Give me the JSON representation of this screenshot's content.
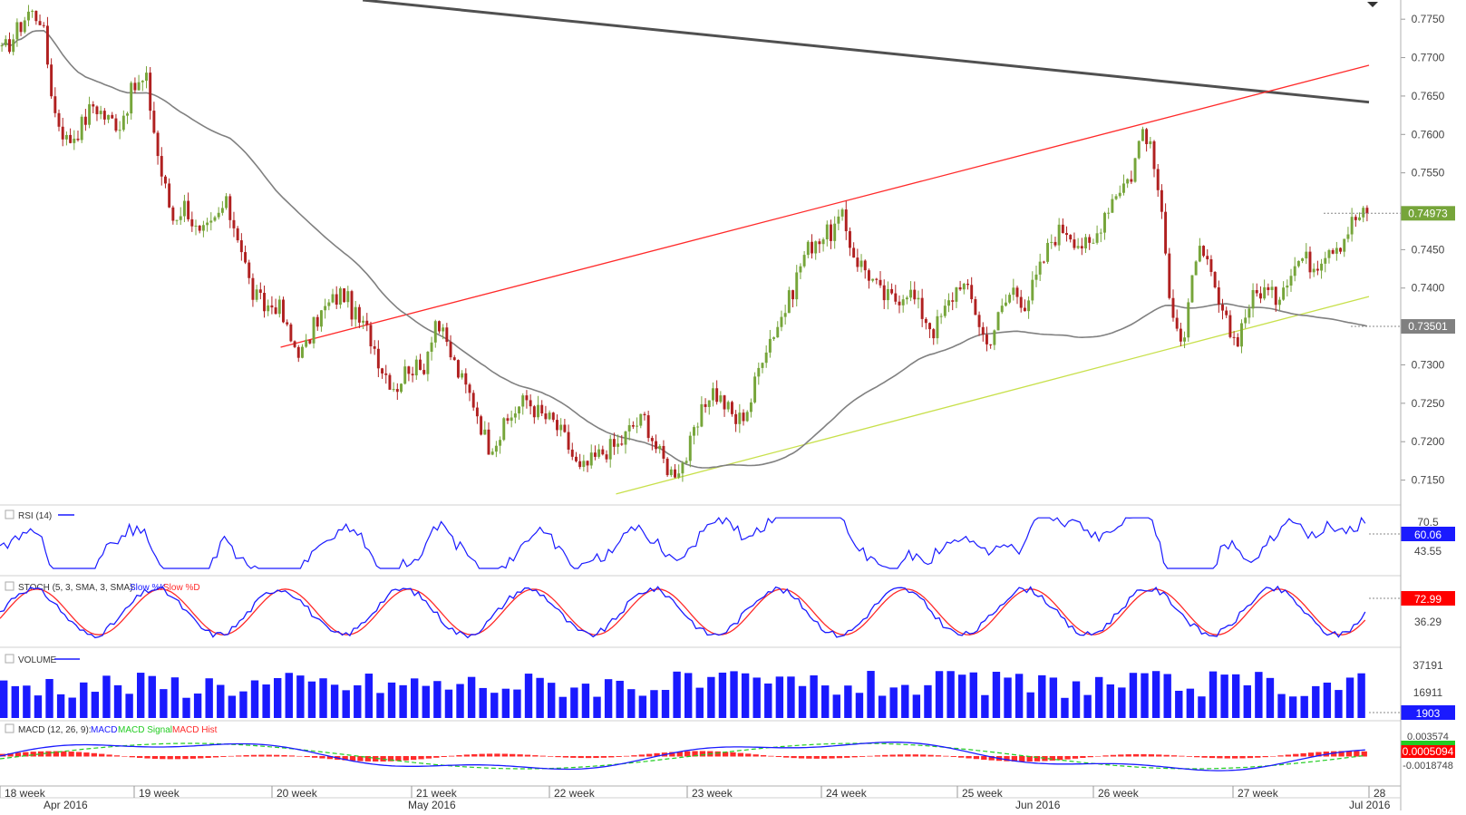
{
  "chart_data": [
    {
      "panel": "price",
      "type": "candlestick",
      "y_range": [
        0.712,
        0.7775
      ],
      "y_ticks": [
        "0.7750",
        "0.7700",
        "0.7650",
        "0.7600",
        "0.7550",
        "0.7500",
        "0.7450",
        "0.7400",
        "0.7350",
        "0.7300",
        "0.7250",
        "0.7200",
        "0.7150"
      ],
      "last_price": {
        "text": "0.74973",
        "value": 0.74973,
        "color": "#76a53a"
      },
      "ma_label": {
        "text": "0.73501",
        "value": 0.73501,
        "color": "#808080"
      },
      "series_seed": [
        0.7705,
        0.773,
        0.776,
        0.7752,
        0.763,
        0.759,
        0.761,
        0.764,
        0.762,
        0.7615,
        0.766,
        0.767,
        0.756,
        0.749,
        0.751,
        0.7465,
        0.748,
        0.751,
        0.747,
        0.7395,
        0.7375,
        0.738,
        0.733,
        0.7315,
        0.736,
        0.738,
        0.7395,
        0.736,
        0.734,
        0.7295,
        0.727,
        0.73,
        0.729,
        0.736,
        0.732,
        0.728,
        0.725,
        0.7195,
        0.721,
        0.724,
        0.7255,
        0.7235,
        0.7225,
        0.72,
        0.716,
        0.7175,
        0.719,
        0.7195,
        0.722,
        0.723,
        0.7185,
        0.716,
        0.7175,
        0.722,
        0.727,
        0.725,
        0.7225,
        0.725,
        0.732,
        0.735,
        0.7385,
        0.744,
        0.7465,
        0.747,
        0.749,
        0.744,
        0.742,
        0.739,
        0.7385,
        0.74,
        0.737,
        0.7345,
        0.7375,
        0.741,
        0.738,
        0.7325,
        0.7365,
        0.74,
        0.738,
        0.742,
        0.7465,
        0.748,
        0.746,
        0.745,
        0.75,
        0.753,
        0.7545,
        0.7615,
        0.754,
        0.739,
        0.732,
        0.745,
        0.742,
        0.736,
        0.733,
        0.738,
        0.74,
        0.7385,
        0.742,
        0.744,
        0.743,
        0.7455,
        0.746,
        0.749,
        0.7497
      ],
      "trendlines": [
        {
          "name": "upper-dark-trendline",
          "color": "#505050",
          "from": [
            0.265,
            0.7775
          ],
          "to": [
            1.0,
            0.7642
          ]
        },
        {
          "name": "red-trendline",
          "color": "#ff2a2a",
          "from": [
            0.205,
            0.7323
          ],
          "to": [
            1.0,
            0.769
          ]
        },
        {
          "name": "yellow-trendline",
          "color": "#c8e04b",
          "from": [
            0.45,
            0.7132
          ],
          "to": [
            1.0,
            0.7389
          ]
        }
      ]
    },
    {
      "panel": "rsi",
      "type": "line",
      "label": "RSI (14)",
      "color": "#1a1aff",
      "y_ticks": [
        "70.5",
        "43.55"
      ],
      "last_value": {
        "text": "60.06",
        "color": "#1a1aff"
      }
    },
    {
      "panel": "stoch",
      "type": "line",
      "label_prefix": "STOCH (5, 3, SMA, 3, SMA):",
      "series": [
        {
          "name": "Slow %K",
          "color": "#1a1aff"
        },
        {
          "name": "Slow %D",
          "color": "#ff2a2a"
        }
      ],
      "y_ticks": [
        "36.29"
      ],
      "last_value": {
        "text": "72.99",
        "color": "#ff2a2a"
      }
    },
    {
      "panel": "volume",
      "type": "bar",
      "label": "VOLUME",
      "color": "#1a1aff",
      "y_ticks": [
        "37191",
        "16911"
      ],
      "last_value": {
        "text": "1903",
        "color": "#1a1aff"
      }
    },
    {
      "panel": "macd",
      "type": "line",
      "label_prefix": "MACD (12, 26, 9):",
      "series": [
        {
          "name": "MACD",
          "color": "#1a1aff"
        },
        {
          "name": "MACD Signal",
          "color": "#22cc22"
        },
        {
          "name": "MACD Hist",
          "color": "#ff2a2a"
        }
      ],
      "y_ticks": [
        "0.003574",
        "-0.0018748"
      ],
      "last_value": {
        "text": "0.0005094",
        "color": "#ff2a2a"
      }
    }
  ],
  "x_axis": {
    "weeks": [
      "18 week",
      "19 week",
      "20 week",
      "21 week",
      "22 week",
      "23 week",
      "24 week",
      "25 week",
      "26 week",
      "27 week",
      "28"
    ],
    "months": [
      "Apr 2016",
      "May 2016",
      "Jun 2016",
      "Jul 2016"
    ]
  }
}
